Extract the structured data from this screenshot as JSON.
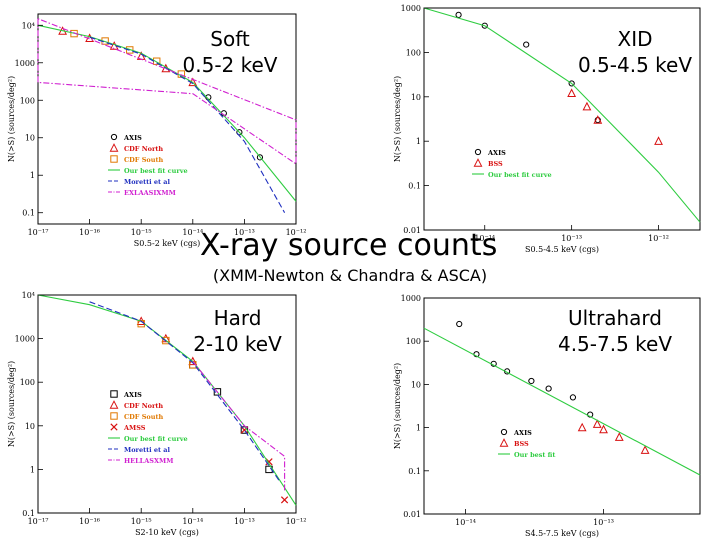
{
  "slide": {
    "title": "X-ray source counts",
    "subtitle": "(XMM-Newton & Chandra & ASCA)"
  },
  "chart_data": [
    {
      "type": "scatter",
      "panel_label": [
        "Soft",
        "0.5-2 keV"
      ],
      "xlabel": "S0.5-2 keV (cgs)",
      "ylabel": "N(>S) (sources/deg²)",
      "xscale": "log",
      "yscale": "log",
      "xlim": [
        1e-17,
        1e-12
      ],
      "ylim": [
        0.05,
        20000
      ],
      "xticks": [
        "10⁻¹⁷",
        "10⁻¹⁶",
        "10⁻¹⁵",
        "10⁻¹⁴",
        "10⁻¹³",
        "10⁻¹²"
      ],
      "yticks": [
        "0.1",
        "1",
        "10",
        "100",
        "1000",
        "10⁴"
      ],
      "legend": [
        "AXIS",
        "CDF North",
        "CDF South",
        "Our best fit curve",
        "Moretti et al",
        "EXLAASIXMM"
      ],
      "series": [
        {
          "name": "AXIS",
          "marker": "circle",
          "color": "#000000",
          "x": [
            2e-14,
            4e-14,
            8e-14,
            2e-13
          ],
          "y": [
            120,
            45,
            14,
            3
          ]
        },
        {
          "name": "CDF North",
          "marker": "triangle",
          "color": "#d81010",
          "x": [
            3e-17,
            1e-16,
            3e-16,
            1e-15,
            3e-15,
            1e-14
          ],
          "y": [
            7000,
            4500,
            2800,
            1500,
            700,
            300
          ]
        },
        {
          "name": "CDF South",
          "marker": "square",
          "color": "#e07800",
          "x": [
            5e-17,
            2e-16,
            6e-16,
            2e-15,
            6e-15
          ],
          "y": [
            6000,
            3800,
            2200,
            1100,
            500
          ]
        },
        {
          "name": "Our best fit curve",
          "style": "line",
          "color": "#2ecc40",
          "x": [
            1e-17,
            1e-16,
            1e-15,
            1e-14,
            1e-13,
            1e-12
          ],
          "y": [
            10000,
            5000,
            1800,
            300,
            10,
            0.2
          ]
        },
        {
          "name": "Moretti et al",
          "style": "dash",
          "color": "#1f2fbf",
          "x": [
            1e-16,
            1e-15,
            1e-14,
            1e-13,
            6e-13
          ],
          "y": [
            4800,
            1700,
            280,
            8,
            0.1
          ]
        },
        {
          "name": "EXLAASIXMM",
          "style": "dashdot",
          "color": "#d020d0",
          "x": [
            1e-17,
            1e-17,
            1e-14,
            1e-12,
            1e-12,
            1e-17
          ],
          "y": [
            15000,
            300,
            150,
            2,
            30,
            15000
          ]
        }
      ]
    },
    {
      "type": "scatter",
      "panel_label": [
        "XID",
        "0.5-4.5 keV"
      ],
      "xlabel": "S0.5-4.5 keV (cgs)",
      "ylabel": "N(>S) (sources/deg²)",
      "xscale": "log",
      "yscale": "log",
      "xlim": [
        2e-15,
        3e-12
      ],
      "ylim": [
        0.01,
        1000
      ],
      "xticks": [
        "10⁻¹⁴",
        "10⁻¹³",
        "10⁻¹²"
      ],
      "yticks": [
        "0.01",
        "0.1",
        "1",
        "10",
        "100",
        "1000"
      ],
      "legend": [
        "AXIS",
        "BSS",
        "Our best fit curve"
      ],
      "series": [
        {
          "name": "AXIS",
          "marker": "circle",
          "color": "#000000",
          "x": [
            5e-15,
            1e-14,
            3e-14,
            1e-13,
            2e-13
          ],
          "y": [
            700,
            400,
            150,
            20,
            3
          ]
        },
        {
          "name": "BSS",
          "marker": "triangle",
          "color": "#d81010",
          "x": [
            1e-13,
            1.5e-13,
            2e-13,
            1e-12
          ],
          "y": [
            12,
            6,
            3,
            1
          ]
        },
        {
          "name": "Our best fit curve",
          "style": "line",
          "color": "#2ecc40",
          "x": [
            2e-15,
            1e-14,
            1e-13,
            1e-12,
            3e-12
          ],
          "y": [
            1000,
            400,
            20,
            0.2,
            0.015
          ]
        }
      ]
    },
    {
      "type": "scatter",
      "panel_label": [
        "Hard",
        "2-10 keV"
      ],
      "xlabel": "S2-10 keV (cgs)",
      "ylabel": "N(>S) (sources/deg²)",
      "xscale": "log",
      "yscale": "log",
      "xlim": [
        1e-17,
        1e-12
      ],
      "ylim": [
        0.1,
        10000
      ],
      "xticks": [
        "10⁻¹⁷",
        "10⁻¹⁶",
        "10⁻¹⁵",
        "10⁻¹⁴",
        "10⁻¹³",
        "10⁻¹²"
      ],
      "yticks": [
        "0.1",
        "1",
        "10",
        "100",
        "1000",
        "10⁴"
      ],
      "legend": [
        "AXIS",
        "CDF North",
        "CDF South",
        "AMSS",
        "Our best fit curve",
        "Moretti et al",
        "HELLASXMM"
      ],
      "series": [
        {
          "name": "AXIS",
          "marker": "square",
          "color": "#000000",
          "x": [
            1e-14,
            3e-14,
            1e-13,
            3e-13
          ],
          "y": [
            250,
            60,
            8,
            1
          ]
        },
        {
          "name": "CDF North",
          "marker": "triangle",
          "color": "#d81010",
          "x": [
            1e-15,
            3e-15,
            1e-14
          ],
          "y": [
            2500,
            1000,
            300
          ]
        },
        {
          "name": "CDF South",
          "marker": "square",
          "color": "#e07800",
          "x": [
            1e-15,
            3e-15,
            1e-14
          ],
          "y": [
            2200,
            900,
            250
          ]
        },
        {
          "name": "AMSS",
          "marker": "cross",
          "color": "#d81010",
          "x": [
            1e-13,
            3e-13,
            6e-13
          ],
          "y": [
            8,
            1.5,
            0.2
          ]
        },
        {
          "name": "Our best fit curve",
          "style": "line",
          "color": "#2ecc40",
          "x": [
            1e-17,
            1e-16,
            1e-15,
            1e-14,
            1e-13,
            1e-12
          ],
          "y": [
            10000,
            6000,
            2500,
            300,
            10,
            0.15
          ]
        },
        {
          "name": "Moretti et al",
          "style": "dash",
          "color": "#1f2fbf",
          "x": [
            1e-16,
            1e-15,
            1e-14,
            1e-13,
            5e-13
          ],
          "y": [
            7000,
            2500,
            280,
            8,
            0.5
          ]
        },
        {
          "name": "HELLASXMM",
          "style": "dashdot",
          "color": "#d020d0",
          "x": [
            1e-14,
            1e-13,
            6e-13,
            6e-13
          ],
          "y": [
            300,
            10,
            2,
            0.3
          ]
        }
      ]
    },
    {
      "type": "scatter",
      "panel_label": [
        "Ultrahard",
        "4.5-7.5 keV"
      ],
      "xlabel": "S4.5-7.5 keV (cgs)",
      "ylabel": "N(>S) (sources/deg²)",
      "xscale": "log",
      "yscale": "log",
      "xlim": [
        5e-15,
        5e-13
      ],
      "ylim": [
        0.01,
        1000
      ],
      "xticks": [
        "10⁻¹⁴",
        "10⁻¹³"
      ],
      "yticks": [
        "0.01",
        "0.1",
        "1",
        "10",
        "100",
        "1000"
      ],
      "legend": [
        "AXIS",
        "BSS",
        "Our best fit"
      ],
      "series": [
        {
          "name": "AXIS",
          "marker": "circle",
          "color": "#000000",
          "x": [
            9e-15,
            1.2e-14,
            1.6e-14,
            2e-14,
            3e-14,
            4e-14,
            6e-14,
            8e-14
          ],
          "y": [
            250,
            50,
            30,
            20,
            12,
            8,
            5,
            2
          ]
        },
        {
          "name": "BSS",
          "marker": "triangle",
          "color": "#d81010",
          "x": [
            7e-14,
            9e-14,
            1e-13,
            1.3e-13,
            2e-13
          ],
          "y": [
            1,
            1.2,
            0.9,
            0.6,
            0.3
          ]
        },
        {
          "name": "Our best fit",
          "style": "line",
          "color": "#2ecc40",
          "x": [
            5e-15,
            5e-13
          ],
          "y": [
            200,
            0.08
          ]
        }
      ]
    }
  ]
}
